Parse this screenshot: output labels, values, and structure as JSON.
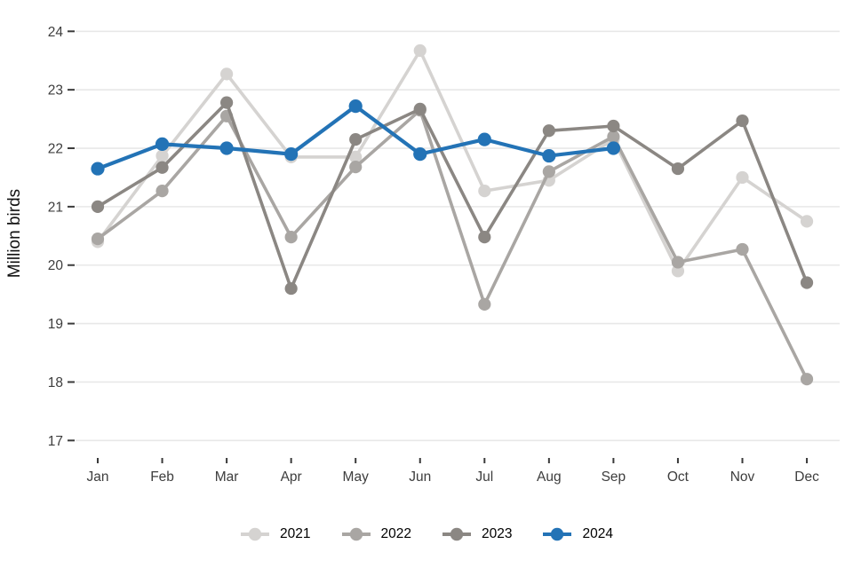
{
  "chart_data": {
    "type": "line",
    "title": "",
    "ylabel": "Million birds",
    "xlabel": "",
    "categories": [
      "Jan",
      "Feb",
      "Mar",
      "Apr",
      "May",
      "Jun",
      "Jul",
      "Aug",
      "Sep",
      "Oct",
      "Nov",
      "Dec"
    ],
    "yticks": [
      24,
      23,
      22,
      21,
      20,
      19,
      18,
      17
    ],
    "ylim": [
      17,
      24
    ],
    "grid": true,
    "legend_position": "bottom-center",
    "series": [
      {
        "name": "2021",
        "color": "#d5d3d1",
        "values": [
          20.4,
          21.87,
          23.27,
          21.85,
          21.85,
          23.67,
          21.27,
          21.45,
          22.15,
          19.9,
          21.5,
          20.75
        ]
      },
      {
        "name": "2022",
        "color": "#a9a6a3",
        "values": [
          20.45,
          21.27,
          22.55,
          20.48,
          21.68,
          22.65,
          19.33,
          21.6,
          22.2,
          20.05,
          20.27,
          18.05
        ]
      },
      {
        "name": "2023",
        "color": "#8b8783",
        "values": [
          21.0,
          21.67,
          22.78,
          19.6,
          22.15,
          22.67,
          20.48,
          22.3,
          22.38,
          21.65,
          22.47,
          19.7
        ]
      },
      {
        "name": "2024",
        "color": "#2373b6",
        "values": [
          21.65,
          22.07,
          22.0,
          21.9,
          22.72,
          21.9,
          22.15,
          21.87,
          22.0
        ]
      }
    ]
  }
}
